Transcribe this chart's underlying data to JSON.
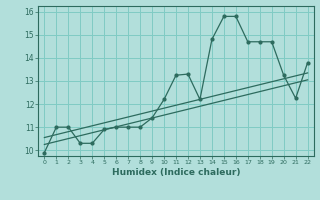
{
  "xlabel": "Humidex (Indice chaleur)",
  "bg_color": "#b2dfdb",
  "grid_color": "#80cbc4",
  "line_color": "#2d6b5e",
  "xlim": [
    -0.5,
    22.5
  ],
  "ylim": [
    9.75,
    16.25
  ],
  "xticks": [
    0,
    1,
    2,
    3,
    4,
    5,
    6,
    7,
    8,
    9,
    10,
    11,
    12,
    13,
    14,
    15,
    16,
    17,
    18,
    19,
    20,
    21,
    22
  ],
  "yticks": [
    10,
    11,
    12,
    13,
    14,
    15,
    16
  ],
  "line1_x": [
    0,
    1,
    2,
    3,
    4,
    5,
    6,
    7,
    8,
    9,
    10,
    11,
    12,
    13,
    14,
    15,
    16,
    17,
    18,
    19,
    20,
    21,
    22
  ],
  "line1_y": [
    9.9,
    11.0,
    11.0,
    10.3,
    10.3,
    10.9,
    11.0,
    11.0,
    11.0,
    11.4,
    12.2,
    13.25,
    13.3,
    12.2,
    14.8,
    15.8,
    15.8,
    14.7,
    14.7,
    14.7,
    13.25,
    12.25,
    13.8
  ],
  "line2_x": [
    0,
    22
  ],
  "line2_y": [
    10.55,
    13.35
  ],
  "line3_x": [
    0,
    22
  ],
  "line3_y": [
    10.25,
    13.05
  ]
}
